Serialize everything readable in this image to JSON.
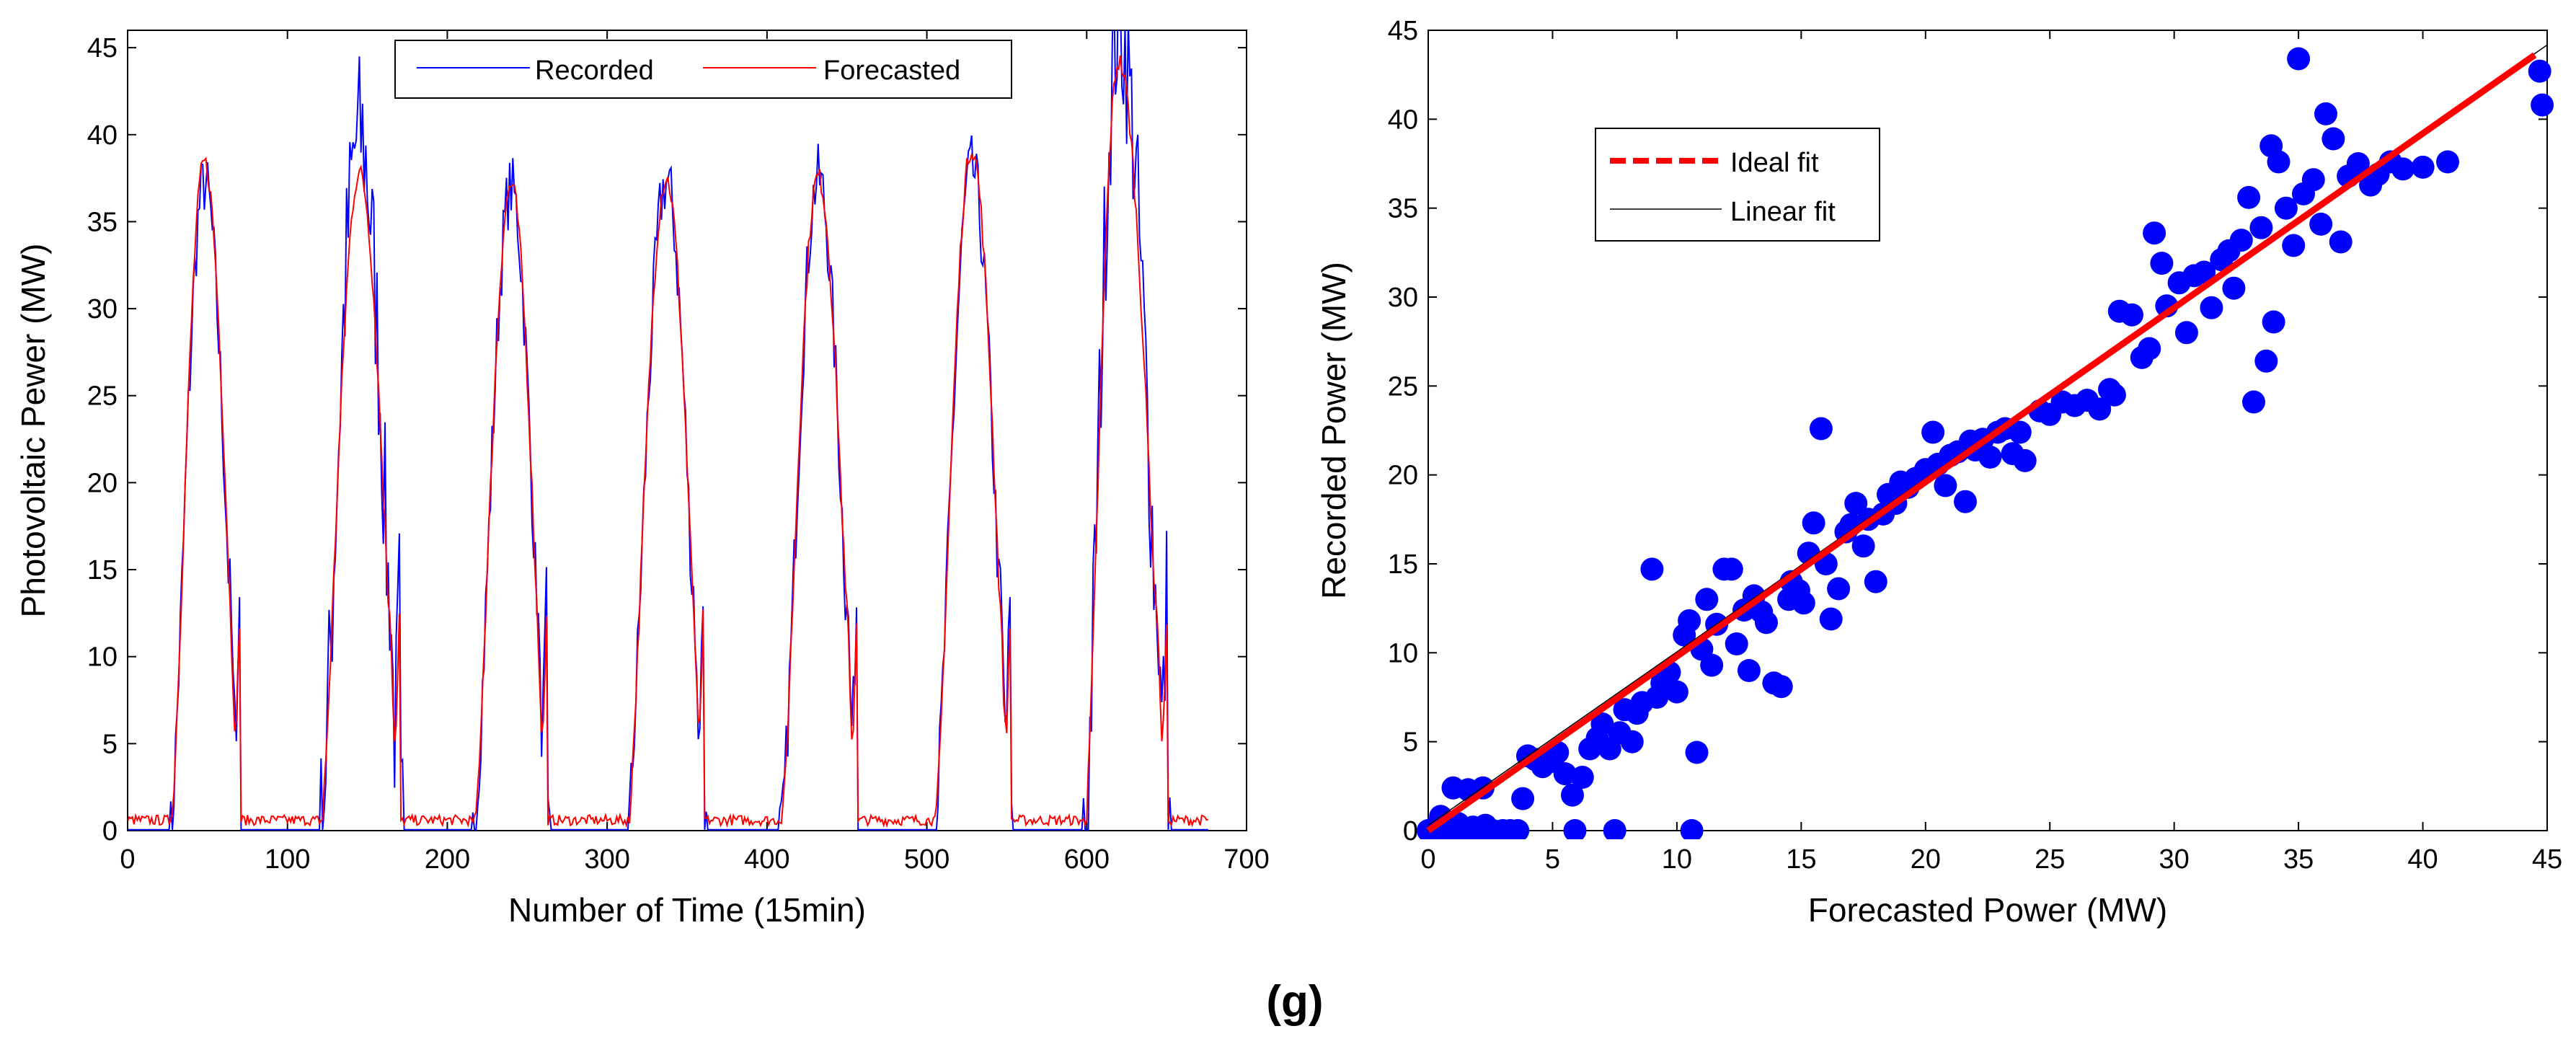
{
  "caption": "(g)",
  "chart_data": [
    {
      "type": "line",
      "xlabel": "Number of Time (15min)",
      "ylabel": "Photovoltaic Pewer (MW)",
      "xlim": [
        0,
        700
      ],
      "ylim": [
        0,
        46
      ],
      "xticks": [
        0,
        100,
        200,
        300,
        400,
        500,
        600,
        700
      ],
      "yticks": [
        0,
        5,
        10,
        15,
        20,
        25,
        30,
        35,
        40,
        45
      ],
      "legend_position": "top-center",
      "grid": false,
      "days": [
        {
          "start": 28,
          "end": 70,
          "peak_center": 48,
          "peak_recorded": 37.2,
          "peak_forecasted": 38.4
        },
        {
          "start": 122,
          "end": 170,
          "peak_center": 145,
          "peak_recorded": 40.1,
          "peak_forecasted": 37.8
        },
        {
          "start": 218,
          "end": 262,
          "peak_center": 240,
          "peak_recorded": 36.9,
          "peak_forecasted": 37.1
        },
        {
          "start": 314,
          "end": 360,
          "peak_center": 337,
          "peak_recorded": 37.3,
          "peak_forecasted": 37.5
        },
        {
          "start": 410,
          "end": 456,
          "peak_center": 432,
          "peak_recorded": 37.5,
          "peak_forecasted": 37.6
        },
        {
          "start": 506,
          "end": 552,
          "peak_center": 528,
          "peak_recorded": 38.0,
          "peak_forecasted": 39.2
        },
        {
          "start": 600,
          "end": 650,
          "peak_center": 620,
          "peak_recorded": 46.3,
          "peak_forecasted": 44.2
        }
      ],
      "x_end": 676,
      "series": [
        {
          "name": "Recorded",
          "color": "#0000ff"
        },
        {
          "name": "Forecasted",
          "color": "#ff0000"
        }
      ]
    },
    {
      "type": "scatter",
      "xlabel": "Forecasted Power (MW)",
      "ylabel": "Recorded Power (MW)",
      "xlim": [
        0,
        45
      ],
      "ylim": [
        0,
        45
      ],
      "xticks": [
        0,
        5,
        10,
        15,
        20,
        25,
        30,
        35,
        40,
        45
      ],
      "yticks": [
        0,
        5,
        10,
        15,
        20,
        25,
        30,
        35,
        40,
        45
      ],
      "legend_position": "top-left",
      "grid": false,
      "points_color": "#0000ff",
      "points": [
        [
          0,
          0
        ],
        [
          0.3,
          0.2
        ],
        [
          0.5,
          0
        ],
        [
          0.8,
          0.3
        ],
        [
          1.0,
          0
        ],
        [
          1.2,
          0.4
        ],
        [
          1.5,
          0
        ],
        [
          1.8,
          0.2
        ],
        [
          2.0,
          0
        ],
        [
          2.3,
          0.3
        ],
        [
          2.6,
          0
        ],
        [
          3.0,
          0
        ],
        [
          3.3,
          0
        ],
        [
          3.6,
          0
        ],
        [
          1.0,
          2.4
        ],
        [
          1.6,
          2.3
        ],
        [
          2.2,
          2.4
        ],
        [
          0.5,
          0.8
        ],
        [
          3.8,
          1.8
        ],
        [
          4.0,
          4.2
        ],
        [
          4.3,
          4.0
        ],
        [
          4.6,
          3.6
        ],
        [
          5.0,
          3.9
        ],
        [
          5.2,
          4.4
        ],
        [
          5.5,
          3.2
        ],
        [
          5.8,
          2.0
        ],
        [
          5.9,
          0
        ],
        [
          6.2,
          3.0
        ],
        [
          6.5,
          4.6
        ],
        [
          6.8,
          5.2
        ],
        [
          7.0,
          6.0
        ],
        [
          7.3,
          4.6
        ],
        [
          7.5,
          0
        ],
        [
          7.7,
          5.5
        ],
        [
          7.9,
          6.8
        ],
        [
          8.2,
          5.0
        ],
        [
          8.4,
          6.6
        ],
        [
          8.6,
          7.2
        ],
        [
          9.0,
          14.7
        ],
        [
          9.2,
          7.5
        ],
        [
          9.4,
          8.3
        ],
        [
          9.7,
          8.9
        ],
        [
          10.0,
          7.8
        ],
        [
          10.3,
          11.0
        ],
        [
          10.5,
          11.8
        ],
        [
          10.6,
          0
        ],
        [
          10.8,
          4.4
        ],
        [
          11.0,
          10.2
        ],
        [
          11.2,
          13.0
        ],
        [
          11.4,
          9.3
        ],
        [
          11.6,
          11.6
        ],
        [
          11.9,
          14.7
        ],
        [
          12.2,
          14.7
        ],
        [
          12.4,
          10.5
        ],
        [
          12.7,
          12.4
        ],
        [
          12.9,
          9.0
        ],
        [
          13.1,
          13.2
        ],
        [
          13.4,
          12.3
        ],
        [
          13.6,
          11.7
        ],
        [
          13.9,
          8.3
        ],
        [
          14.2,
          8.1
        ],
        [
          14.5,
          13.0
        ],
        [
          14.6,
          14.0
        ],
        [
          14.9,
          13.5
        ],
        [
          15.1,
          12.8
        ],
        [
          15.3,
          15.6
        ],
        [
          15.5,
          17.3
        ],
        [
          15.8,
          22.6
        ],
        [
          16.0,
          15.0
        ],
        [
          16.2,
          11.9
        ],
        [
          16.5,
          13.6
        ],
        [
          16.8,
          16.8
        ],
        [
          17.0,
          17.2
        ],
        [
          17.2,
          18.4
        ],
        [
          17.5,
          16.0
        ],
        [
          17.7,
          17.5
        ],
        [
          18.0,
          14.0
        ],
        [
          18.3,
          17.8
        ],
        [
          18.5,
          18.9
        ],
        [
          18.8,
          18.4
        ],
        [
          19.0,
          19.6
        ],
        [
          19.3,
          19.3
        ],
        [
          19.6,
          19.8
        ],
        [
          20.0,
          20.3
        ],
        [
          20.3,
          22.4
        ],
        [
          20.5,
          20.6
        ],
        [
          20.8,
          19.4
        ],
        [
          21.0,
          21.1
        ],
        [
          21.3,
          21.3
        ],
        [
          21.6,
          18.5
        ],
        [
          21.8,
          21.9
        ],
        [
          22.0,
          21.4
        ],
        [
          22.3,
          22.0
        ],
        [
          22.6,
          21.0
        ],
        [
          22.9,
          22.4
        ],
        [
          23.2,
          22.6
        ],
        [
          23.5,
          21.2
        ],
        [
          23.8,
          22.4
        ],
        [
          24.0,
          20.8
        ],
        [
          24.6,
          23.6
        ],
        [
          25.0,
          23.4
        ],
        [
          25.5,
          24.1
        ],
        [
          26.0,
          23.9
        ],
        [
          26.5,
          24.2
        ],
        [
          27.0,
          23.7
        ],
        [
          27.4,
          24.8
        ],
        [
          27.6,
          24.5
        ],
        [
          27.8,
          29.2
        ],
        [
          28.3,
          29.0
        ],
        [
          28.7,
          26.6
        ],
        [
          29.0,
          27.1
        ],
        [
          29.2,
          33.6
        ],
        [
          29.5,
          31.9
        ],
        [
          29.7,
          29.5
        ],
        [
          30.2,
          30.8
        ],
        [
          30.5,
          28.0
        ],
        [
          30.8,
          31.2
        ],
        [
          31.2,
          31.4
        ],
        [
          31.5,
          29.4
        ],
        [
          31.9,
          32.1
        ],
        [
          32.2,
          32.6
        ],
        [
          32.4,
          30.5
        ],
        [
          32.7,
          33.2
        ],
        [
          33.0,
          35.6
        ],
        [
          33.2,
          24.1
        ],
        [
          33.5,
          33.9
        ],
        [
          33.7,
          26.4
        ],
        [
          33.9,
          38.5
        ],
        [
          34.0,
          28.6
        ],
        [
          34.2,
          37.6
        ],
        [
          34.5,
          35.0
        ],
        [
          34.8,
          32.9
        ],
        [
          35.0,
          43.4
        ],
        [
          35.2,
          35.8
        ],
        [
          35.6,
          36.6
        ],
        [
          35.9,
          34.1
        ],
        [
          36.1,
          40.3
        ],
        [
          36.4,
          38.9
        ],
        [
          36.7,
          33.1
        ],
        [
          37.0,
          36.8
        ],
        [
          37.4,
          37.5
        ],
        [
          37.9,
          36.3
        ],
        [
          38.2,
          36.9
        ],
        [
          38.7,
          37.6
        ],
        [
          39.2,
          37.2
        ],
        [
          40.0,
          37.3
        ],
        [
          41.0,
          37.6
        ],
        [
          44.7,
          42.7
        ],
        [
          44.8,
          40.8
        ]
      ],
      "lines": [
        {
          "name": "Ideal fit",
          "color": "#ff0000",
          "slope": 1.0,
          "intercept": 0,
          "x_end": 44.5
        },
        {
          "name": "Linear fit",
          "color": "#000000",
          "slope": 0.975,
          "intercept": 0.3,
          "x_end": 45
        }
      ]
    }
  ]
}
